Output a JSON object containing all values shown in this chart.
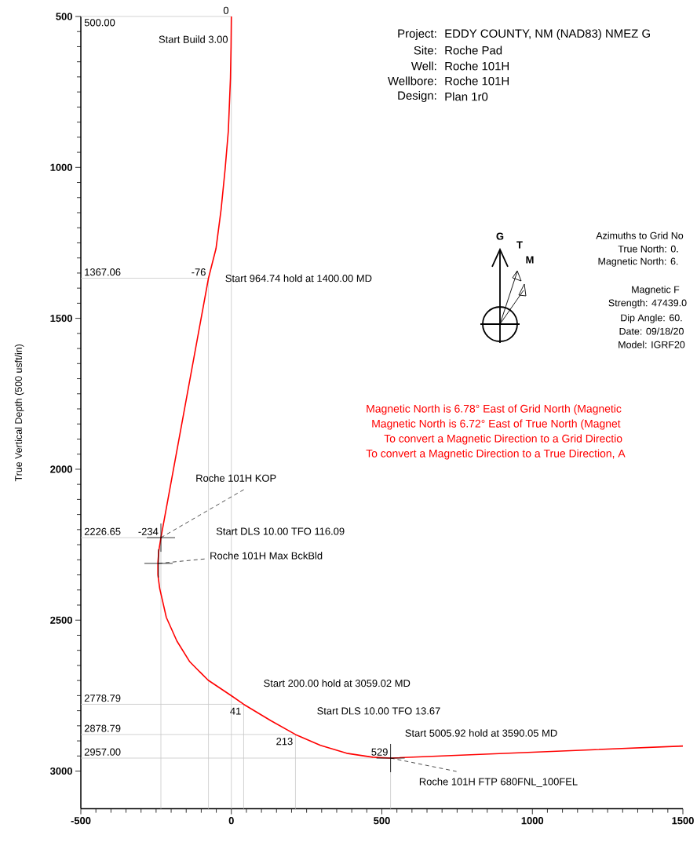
{
  "chart_data": {
    "type": "line",
    "ylabel": "True Vertical Depth (500 usft/in)",
    "xlim": [
      -500,
      1500
    ],
    "ylim": [
      3125,
      500
    ],
    "xticks": [
      -500,
      0,
      500,
      1000,
      1500
    ],
    "yticks": [
      500,
      1000,
      1500,
      2000,
      2500,
      3000
    ],
    "grid": false,
    "marker": "none",
    "line_style": "solid",
    "series": [
      {
        "color": "#ff0000",
        "x": [
          0,
          -1,
          -3,
          -10,
          -21,
          -34,
          -51,
          -76,
          -155,
          -234,
          -241,
          -244,
          -244,
          -238,
          -216,
          -181,
          -138,
          -77,
          1,
          41,
          131,
          213,
          296,
          383,
          470,
          529,
          1500
        ],
        "values": [
          500,
          600,
          705,
          879,
          1009,
          1139,
          1269,
          1367.06,
          1797,
          2226.65,
          2270,
          2310,
          2350,
          2395,
          2491,
          2569,
          2638,
          2699,
          2751,
          2778.79,
          2833,
          2878.79,
          2915,
          2941,
          2954,
          2957,
          2917
        ]
      }
    ],
    "ref_lines": [
      {
        "axis": "y",
        "value": 500,
        "label": "500.00",
        "color": "#c8c8c8"
      },
      {
        "axis": "y",
        "value": 1367.06,
        "label": "1367.06",
        "color": "#c8c8c8"
      },
      {
        "axis": "y",
        "value": 2226.65,
        "label": "2226.65",
        "color": "#c8c8c8"
      },
      {
        "axis": "y",
        "value": 2778.79,
        "label": "2778.79",
        "color": "#c8c8c8"
      },
      {
        "axis": "y",
        "value": 2878.79,
        "label": "2878.79",
        "color": "#c8c8c8"
      },
      {
        "axis": "y",
        "value": 2957.0,
        "label": "2957.00",
        "color": "#c8c8c8"
      },
      {
        "axis": "x",
        "value": 0,
        "label": "0",
        "color": "#c8c8c8"
      },
      {
        "axis": "x",
        "value": -76,
        "label": "-76",
        "color": "#c8c8c8"
      },
      {
        "axis": "x",
        "value": -234,
        "label": "-234",
        "color": "#c8c8c8"
      },
      {
        "axis": "x",
        "value": 41,
        "label": "41",
        "color": "#c8c8c8"
      },
      {
        "axis": "x",
        "value": 213,
        "label": "213",
        "color": "#c8c8c8"
      },
      {
        "axis": "x",
        "value": 529,
        "label": "529",
        "color": "#c8c8c8"
      }
    ],
    "annotations": [
      {
        "text": "Start Build 3.00",
        "x": 0,
        "y": 500
      },
      {
        "text": "Start 964.74 hold at 1400.00 MD",
        "x": -76,
        "y": 1367.06
      },
      {
        "text": "Start 200.00 hold at 3059.02 MD",
        "x": 41,
        "y": 2778.79
      },
      {
        "text": "Start DLS 10.00 TFO 13.67",
        "x": 213,
        "y": 2878.79
      },
      {
        "text": "Start 5005.92 hold at 3590.05 MD",
        "x": 529,
        "y": 2957
      },
      {
        "text": "Roche 101H KOP",
        "x": -234,
        "y": 2226.65
      },
      {
        "text": "Roche 101H Max BckBld",
        "x": -242,
        "y": 2312
      },
      {
        "text": "Roche 101H FTP 680FNL_100FEL",
        "x": 529,
        "y": 2957
      },
      "Project:",
      "EDDY COUNTY, NM (NAD83) NMEZ G",
      "Site:",
      "Roche Pad",
      "Well:",
      "Roche 101H",
      "Wellbore:",
      "Roche 101H",
      "Design:",
      "Plan 1r0",
      "G",
      "T",
      "M",
      "Azimuths to Grid No",
      "True North: 0.",
      "Magnetic North: 6.",
      "Magnetic F",
      "Strength: 47439.0",
      "Dip Angle: 60.",
      "Date: 09/18/20",
      "Model: IGRF20",
      "Magnetic North is 6.78° East of Grid North (Magnetic",
      "Magnetic North is 6.72° East of True North (Magnet",
      "To convert a Magnetic Direction to a Grid Directio",
      "To convert a Magnetic Direction to a True Direction, A",
      "Start DLS 10.00 TFO 116.09"
    ]
  }
}
